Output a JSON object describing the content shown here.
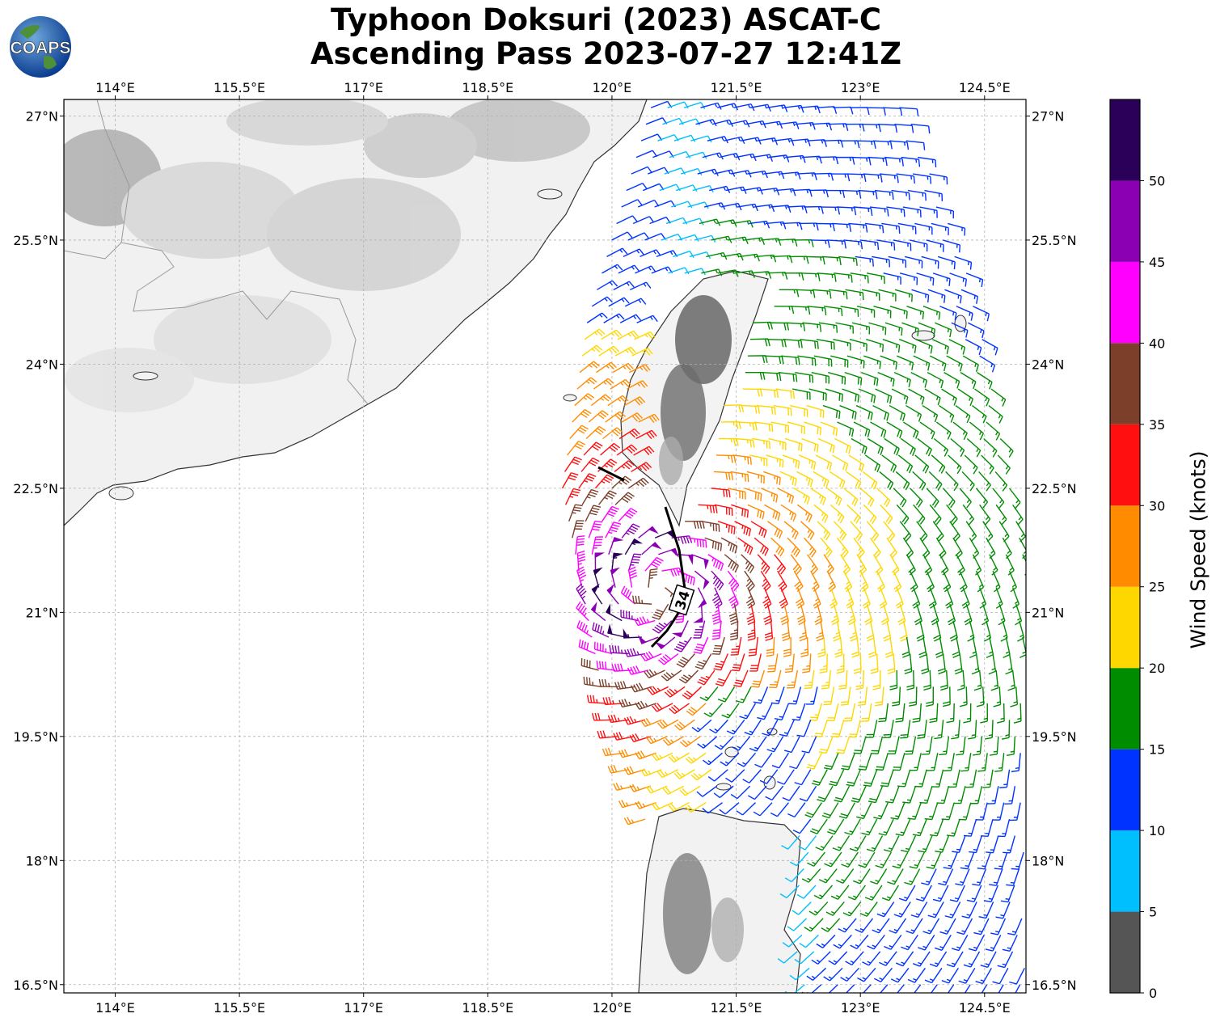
{
  "title_line1": "Typhoon Doksuri (2023) ASCAT-C",
  "title_line2": "Ascending Pass 2023-07-27 12:41Z",
  "logo_text": "COAPS",
  "lon_ticks": [
    {
      "lon": 114.0,
      "label": "114°E"
    },
    {
      "lon": 115.5,
      "label": "115.5°E"
    },
    {
      "lon": 117.0,
      "label": "117°E"
    },
    {
      "lon": 118.5,
      "label": "118.5°E"
    },
    {
      "lon": 120.0,
      "label": "120°E"
    },
    {
      "lon": 121.5,
      "label": "121.5°E"
    },
    {
      "lon": 123.0,
      "label": "123°E"
    },
    {
      "lon": 124.5,
      "label": "124.5°E"
    }
  ],
  "lat_ticks": [
    {
      "lat": 27.0,
      "label": "27°N"
    },
    {
      "lat": 25.5,
      "label": "25.5°N"
    },
    {
      "lat": 24.0,
      "label": "24°N"
    },
    {
      "lat": 22.5,
      "label": "22.5°N"
    },
    {
      "lat": 21.0,
      "label": "21°N"
    },
    {
      "lat": 19.5,
      "label": "19.5°N"
    },
    {
      "lat": 18.0,
      "label": "18°N"
    },
    {
      "lat": 16.5,
      "label": "16.5°N"
    }
  ],
  "extent": {
    "lon_min": 113.38,
    "lon_max": 125.0,
    "lat_min": 16.4,
    "lat_max": 27.2
  },
  "colorbar": {
    "label": "Wind Speed (knots)",
    "bins": [
      {
        "from": 0,
        "to": 5,
        "color": "#555555"
      },
      {
        "from": 5,
        "to": 10,
        "color": "#00bfff"
      },
      {
        "from": 10,
        "to": 15,
        "color": "#0033ff"
      },
      {
        "from": 15,
        "to": 20,
        "color": "#008c00"
      },
      {
        "from": 20,
        "to": 25,
        "color": "#ffd700"
      },
      {
        "from": 25,
        "to": 30,
        "color": "#ff8c00"
      },
      {
        "from": 30,
        "to": 35,
        "color": "#ff0f0f"
      },
      {
        "from": 35,
        "to": 40,
        "color": "#7b3f2a"
      },
      {
        "from": 40,
        "to": 45,
        "color": "#ff00ff"
      },
      {
        "from": 45,
        "to": 50,
        "color": "#8b00b3"
      },
      {
        "from": 50,
        "to": 55,
        "color": "#2a0059"
      }
    ],
    "tick_labels": [
      "0",
      "5",
      "10",
      "15",
      "20",
      "25",
      "30",
      "35",
      "40",
      "45",
      "50"
    ]
  },
  "contour_label": "34",
  "wind_field": {
    "center": {
      "lon": 120.55,
      "lat": 21.25
    },
    "swath_west_edge": [
      [
        120.5,
        27.2
      ],
      [
        119.7,
        24.5
      ],
      [
        119.4,
        22.5
      ],
      [
        119.9,
        20.0
      ],
      [
        120.5,
        18.2
      ],
      [
        121.8,
        16.4
      ]
    ],
    "swath_east_edge": [
      [
        123.5,
        27.2
      ],
      [
        124.4,
        25.0
      ],
      [
        125.0,
        21.5
      ],
      [
        125.0,
        16.4
      ]
    ]
  }
}
